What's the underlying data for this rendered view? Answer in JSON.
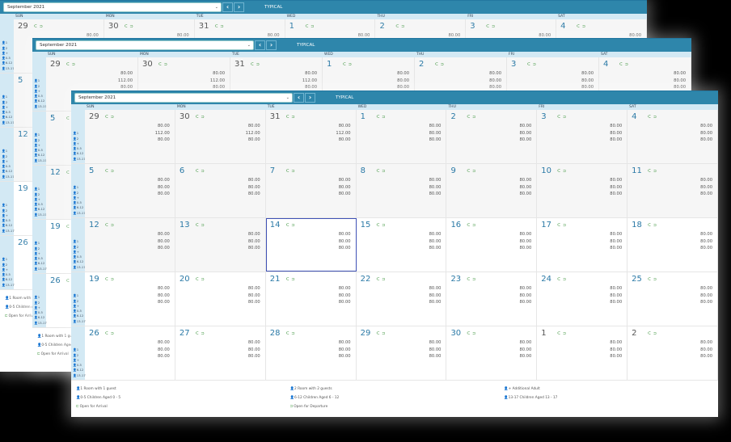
{
  "toolbar": {
    "month": "September 2021",
    "dropdown_icon": "chevron-down-icon",
    "prev_label": "‹",
    "next_label": "›",
    "typical_label": "TYPICAL"
  },
  "weekdays": [
    "SUN",
    "MON",
    "TUE",
    "WED",
    "THU",
    "FRI",
    "SAT"
  ],
  "row_legend": [
    "👤1",
    "👤2",
    "👤+",
    "👤0-5",
    "👤6-12",
    "👤13-17"
  ],
  "arrival_icon": "⮈",
  "departure_icon": "⮊",
  "weeks": [
    [
      {
        "day": "29",
        "other": true,
        "past": true,
        "prices": [
          "80.00",
          "112.00",
          "80.00"
        ]
      },
      {
        "day": "30",
        "other": true,
        "past": true,
        "prices": [
          "80.00",
          "112.00",
          "80.00"
        ]
      },
      {
        "day": "31",
        "other": true,
        "past": true,
        "prices": [
          "80.00",
          "112.00",
          "80.00"
        ]
      },
      {
        "day": "1",
        "past": true,
        "prices": [
          "80.00",
          "80.00",
          "80.00"
        ]
      },
      {
        "day": "2",
        "past": true,
        "prices": [
          "80.00",
          "80.00",
          "80.00"
        ]
      },
      {
        "day": "3",
        "past": true,
        "prices": [
          "80.00",
          "80.00",
          "80.00"
        ]
      },
      {
        "day": "4",
        "past": true,
        "prices": [
          "80.00",
          "80.00",
          "80.00"
        ]
      }
    ],
    [
      {
        "day": "5",
        "past": true,
        "prices": [
          "80.00",
          "80.00",
          "80.00"
        ]
      },
      {
        "day": "6",
        "past": true,
        "prices": [
          "80.00",
          "80.00",
          "80.00"
        ]
      },
      {
        "day": "7",
        "past": true,
        "prices": [
          "80.00",
          "80.00",
          "80.00"
        ]
      },
      {
        "day": "8",
        "past": true,
        "prices": [
          "80.00",
          "80.00",
          "80.00"
        ]
      },
      {
        "day": "9",
        "past": true,
        "prices": [
          "80.00",
          "80.00",
          "80.00"
        ]
      },
      {
        "day": "10",
        "past": true,
        "prices": [
          "80.00",
          "80.00",
          "80.00"
        ]
      },
      {
        "day": "11",
        "past": true,
        "prices": [
          "80.00",
          "80.00",
          "80.00"
        ]
      }
    ],
    [
      {
        "day": "12",
        "past": true,
        "prices": [
          "80.00",
          "80.00",
          "80.00"
        ]
      },
      {
        "day": "13",
        "past": true,
        "prices": [
          "80.00",
          "80.00",
          "80.00"
        ]
      },
      {
        "day": "14",
        "selected": true,
        "prices": [
          "80.00",
          "80.00",
          "80.00"
        ]
      },
      {
        "day": "15",
        "prices": [
          "80.00",
          "80.00",
          "80.00"
        ]
      },
      {
        "day": "16",
        "prices": [
          "80.00",
          "80.00",
          "80.00"
        ]
      },
      {
        "day": "17",
        "prices": [
          "80.00",
          "80.00",
          "80.00"
        ]
      },
      {
        "day": "18",
        "prices": [
          "80.00",
          "80.00",
          "80.00"
        ]
      }
    ],
    [
      {
        "day": "19",
        "prices": [
          "80.00",
          "80.00",
          "80.00"
        ]
      },
      {
        "day": "20",
        "prices": [
          "80.00",
          "80.00",
          "80.00"
        ]
      },
      {
        "day": "21",
        "prices": [
          "80.00",
          "80.00",
          "80.00"
        ]
      },
      {
        "day": "22",
        "prices": [
          "80.00",
          "80.00",
          "80.00"
        ]
      },
      {
        "day": "23",
        "prices": [
          "80.00",
          "80.00",
          "80.00"
        ]
      },
      {
        "day": "24",
        "prices": [
          "80.00",
          "80.00",
          "80.00"
        ]
      },
      {
        "day": "25",
        "prices": [
          "80.00",
          "80.00",
          "80.00"
        ]
      }
    ],
    [
      {
        "day": "26",
        "prices": [
          "80.00",
          "80.00",
          "80.00"
        ]
      },
      {
        "day": "27",
        "prices": [
          "80.00",
          "80.00",
          "80.00"
        ]
      },
      {
        "day": "28",
        "prices": [
          "80.00",
          "80.00",
          "80.00"
        ]
      },
      {
        "day": "29",
        "prices": [
          "80.00",
          "80.00",
          "80.00"
        ]
      },
      {
        "day": "30",
        "prices": [
          "80.00",
          "80.00",
          "80.00"
        ]
      },
      {
        "day": "1",
        "other": true,
        "prices": [
          "80.00",
          "80.00",
          "80.00"
        ]
      },
      {
        "day": "2",
        "other": true,
        "prices": [
          "80.00",
          "80.00",
          "80.00"
        ]
      }
    ]
  ],
  "legend": [
    {
      "icon": "👤1",
      "text": "Room with 1 guest"
    },
    {
      "icon": "👤2",
      "text": "Room with 2 guests"
    },
    {
      "icon": "👤+",
      "text": "Additional Adult"
    },
    {
      "icon": "👤0-5",
      "text": "Children Aged 0 - 5"
    },
    {
      "icon": "👤6-12",
      "text": "Children Aged 6 - 12"
    },
    {
      "icon": "👤13-17",
      "text": "Children Aged 13 - 17"
    },
    {
      "icon": "⮈",
      "text": "Open for Arrival",
      "green": true
    },
    {
      "icon": "⮊",
      "text": "Open for Departure",
      "green": true
    }
  ],
  "colors": {
    "header": "#2e86ab",
    "dow": "#d3e9f4",
    "selected": "#3f51b5",
    "arrow": "#2a8a2a",
    "daynum": "#2a79a6"
  }
}
